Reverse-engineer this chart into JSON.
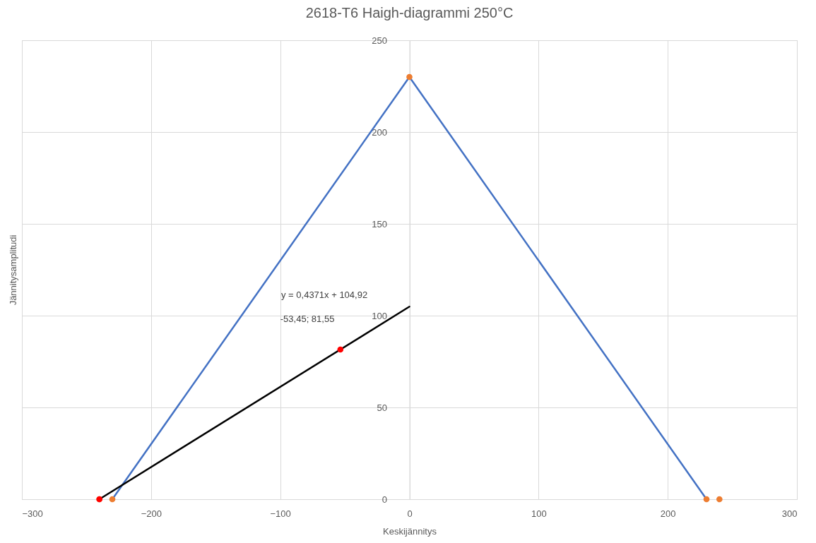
{
  "chart_data": {
    "type": "scatter",
    "title": "2618-T6 Haigh-diagrammi 250°C",
    "xlabel": "Keskijännitys",
    "ylabel": "Jännitysamplitudi",
    "xlim": [
      -300,
      300
    ],
    "ylim": [
      0,
      250
    ],
    "xticks": [
      -300,
      -200,
      -100,
      0,
      100,
      200,
      300
    ],
    "yticks": [
      0,
      50,
      100,
      150,
      200,
      250
    ],
    "grid": true,
    "series": [
      {
        "type": "line",
        "color": "#4472c4",
        "x": [
          -230,
          0,
          230
        ],
        "values": [
          0,
          230,
          0
        ]
      },
      {
        "color": "#ed7d31",
        "x": [
          -240,
          -230,
          0,
          230,
          240
        ],
        "values": [
          0,
          0,
          230,
          0,
          0
        ]
      },
      {
        "type": "line",
        "color": "#000000",
        "x": [
          -240,
          0
        ],
        "values": [
          0,
          104.92
        ]
      },
      {
        "color": "#ff0000",
        "x": [
          -240,
          -53.45
        ],
        "values": [
          0,
          81.55
        ]
      }
    ],
    "annotations": [
      "y = 0,4371x + 104,92",
      {
        "text": "-53,45; 81,55",
        "x": -53.45,
        "y": 81.55
      }
    ]
  }
}
